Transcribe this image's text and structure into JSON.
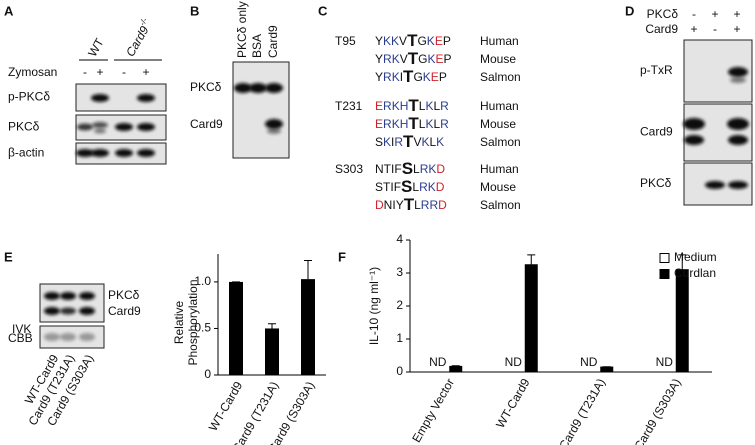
{
  "panels": {
    "A": {
      "label": "A",
      "genotypes": [
        "WT",
        "Card9"
      ],
      "genotype_sup": "-/-",
      "row_label": "Zymosan",
      "signs": [
        "-",
        "+",
        "-",
        "+"
      ],
      "blots": [
        "p-PKCδ",
        "PKCδ",
        "β-actin"
      ]
    },
    "B": {
      "label": "B",
      "lanes": [
        "PKCδ only",
        "BSA",
        "Card9"
      ],
      "blots": [
        "PKCδ",
        "Card9"
      ]
    },
    "C": {
      "label": "C",
      "residue_colors": {
        "K": "#2b3d8f",
        "R": "#2b3d8f",
        "H": "#2b3d8f",
        "E": "#d0202a",
        "D": "#d0202a"
      },
      "groups": [
        {
          "site": "T95",
          "rows": [
            {
              "seq": "YKKVTGKEP",
              "species": "Human"
            },
            {
              "seq": "YRKVTGKEP",
              "species": "Mouse"
            },
            {
              "seq": "YRKITGKEP",
              "species": "Salmon"
            }
          ]
        },
        {
          "site": "T231",
          "rows": [
            {
              "seq": "ERKHTLKLR",
              "species": "Human"
            },
            {
              "seq": "ERKHTLKLR",
              "species": "Mouse"
            },
            {
              "seq": "SKIRTVKLK",
              "species": "Salmon"
            }
          ]
        },
        {
          "site": "S303",
          "rows": [
            {
              "seq": "NTIFSLRKD",
              "species": "Human"
            },
            {
              "seq": "STIFSLRKD",
              "species": "Mouse"
            },
            {
              "seq": "DNIYTLRRD",
              "species": "Salmon"
            }
          ]
        }
      ]
    },
    "D": {
      "label": "D",
      "rows": [
        {
          "name": "PKCδ",
          "signs": [
            "-",
            "+",
            "+"
          ]
        },
        {
          "name": "Card9",
          "signs": [
            "+",
            "-",
            "+"
          ]
        }
      ],
      "blots": [
        "p-TxR",
        "Card9",
        "PKCδ"
      ]
    },
    "E": {
      "label": "E",
      "blot_labels": [
        "PKCδ",
        "Card9"
      ],
      "assays": [
        "IVK",
        "CBB"
      ],
      "lanes": [
        "WT-Card9",
        "Card9 (T231A)",
        "Card9 (S303A)"
      ]
    },
    "F": {
      "label": "F"
    }
  },
  "chart_data": [
    {
      "type": "bar",
      "ylabel_lines": [
        "Relative",
        "Phosphorylation"
      ],
      "categories": [
        "WT-Card9",
        "Card9 (T231A)",
        "Card9 (S303A)"
      ],
      "values": [
        1.0,
        0.5,
        1.03
      ],
      "errors": [
        0,
        0.05,
        0.2
      ],
      "color": "#000000",
      "ylim": [
        0,
        1.3
      ],
      "yticks": [
        0,
        0.5,
        {
          "value": 1,
          "label": "1.0"
        }
      ]
    },
    {
      "type": "grouped_bar",
      "ylabel": "IL-10 (ng ml⁻¹)",
      "categories": [
        "Empty Vector",
        "WT-Card9",
        "Card9 (T231A)",
        "Card9 (S303A)"
      ],
      "series": [
        {
          "name": "Medium",
          "color": "#ffffff",
          "values": [
            null,
            null,
            null,
            null
          ],
          "value_labels": [
            "ND",
            "ND",
            "ND",
            "ND"
          ]
        },
        {
          "name": "Curdlan",
          "color": "#000000",
          "values": [
            0.17,
            3.25,
            0.15,
            3.1
          ],
          "errors": [
            0.02,
            0.3,
            0.01,
            0.45
          ]
        }
      ],
      "ylim": [
        0,
        4
      ],
      "yticks": [
        0,
        1,
        2,
        3,
        4
      ],
      "legend": "top-right"
    }
  ]
}
